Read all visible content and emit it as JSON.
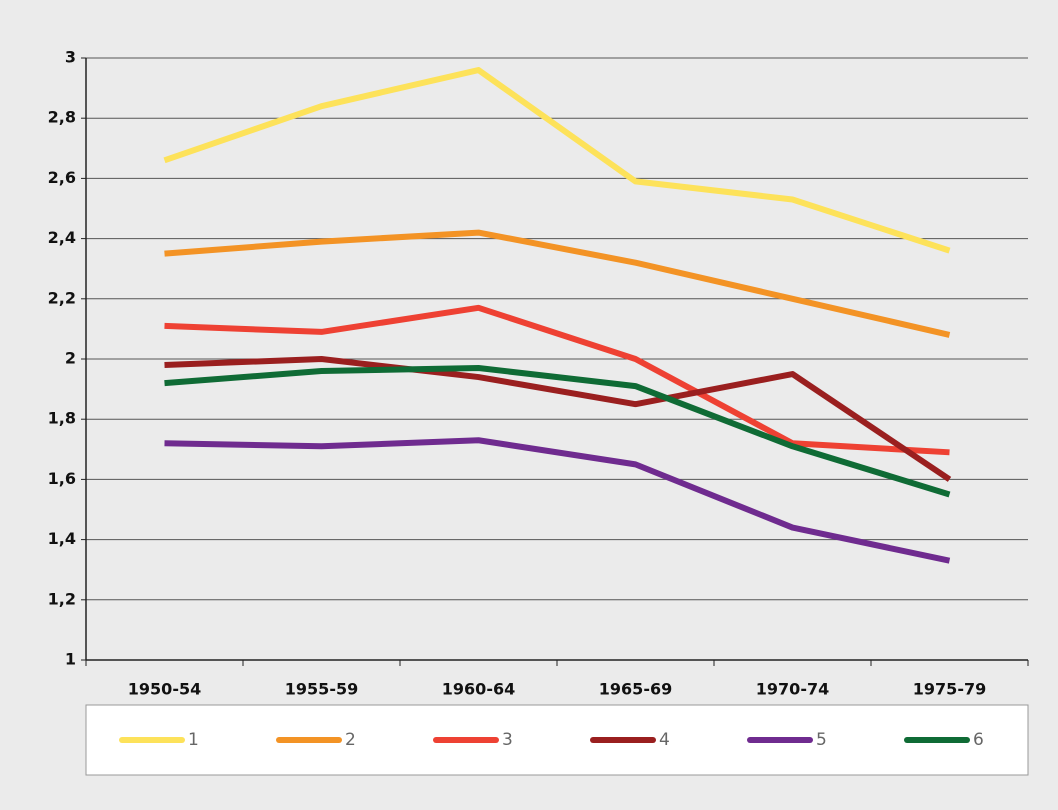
{
  "chart_data": {
    "type": "line",
    "categories": [
      "1950-54",
      "1955-59",
      "1960-64",
      "1965-69",
      "1970-74",
      "1975-79"
    ],
    "series": [
      {
        "name": "1",
        "color": "#fde25a",
        "values": [
          2.66,
          2.84,
          2.96,
          2.59,
          2.53,
          2.36
        ]
      },
      {
        "name": "2",
        "color": "#f39325",
        "values": [
          2.35,
          2.39,
          2.42,
          2.32,
          2.2,
          2.08
        ]
      },
      {
        "name": "3",
        "color": "#ee4133",
        "values": [
          2.11,
          2.09,
          2.17,
          2.0,
          1.72,
          1.69
        ]
      },
      {
        "name": "4",
        "color": "#9a1f1f",
        "values": [
          1.98,
          2.0,
          1.94,
          1.85,
          1.95,
          1.6
        ]
      },
      {
        "name": "5",
        "color": "#6f2b8f",
        "values": [
          1.72,
          1.71,
          1.73,
          1.65,
          1.44,
          1.33
        ]
      },
      {
        "name": "6",
        "color": "#0f6b35",
        "values": [
          1.92,
          1.96,
          1.97,
          1.91,
          1.71,
          1.55
        ]
      }
    ],
    "ylim": [
      1,
      3
    ],
    "yticks": [
      1,
      {
        "value": 1.2,
        "label": "1,2"
      },
      {
        "value": 1.4,
        "label": "1,4"
      },
      {
        "value": 1.6,
        "label": "1,6"
      },
      {
        "value": 1.8,
        "label": "1,8"
      },
      2,
      {
        "value": 2.2,
        "label": "2,2"
      },
      {
        "value": 2.4,
        "label": "2,4"
      },
      {
        "value": 2.6,
        "label": "2,6"
      },
      {
        "value": 2.8,
        "label": "2,8"
      },
      3
    ],
    "grid": true,
    "legend": "bottom"
  }
}
